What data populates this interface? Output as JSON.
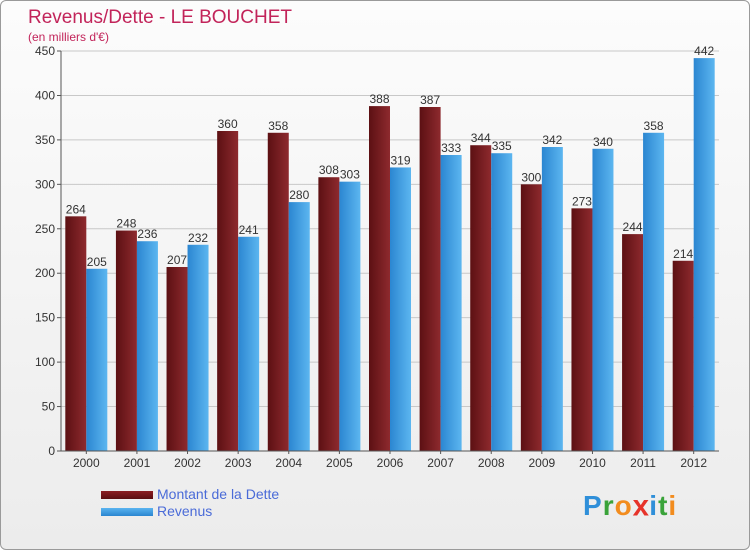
{
  "chart_data": {
    "type": "bar",
    "title": "Revenus/Dette - LE BOUCHET",
    "subtitle": "(en milliers d'€)",
    "categories": [
      "2000",
      "2001",
      "2002",
      "2003",
      "2004",
      "2005",
      "2006",
      "2007",
      "2008",
      "2009",
      "2010",
      "2011",
      "2012"
    ],
    "series": [
      {
        "name": "Montant de la Dette",
        "color": "#7a1a1e",
        "values": [
          264,
          248,
          207,
          360,
          358,
          308,
          388,
          387,
          344,
          300,
          273,
          244,
          214
        ]
      },
      {
        "name": "Revenus",
        "color": "#3d9ce6",
        "values": [
          205,
          236,
          232,
          241,
          280,
          303,
          319,
          333,
          335,
          342,
          340,
          358,
          442
        ]
      }
    ],
    "ylim": [
      0,
      450
    ],
    "yticks": [
      0,
      50,
      100,
      150,
      200,
      250,
      300,
      350,
      400,
      450
    ],
    "grid": true,
    "legend_position": "bottom-left",
    "data_labels": true
  },
  "logo": {
    "text": "Proxiti",
    "letters": [
      {
        "ch": "P",
        "color": "#2f8fd9"
      },
      {
        "ch": "r",
        "color": "#3aa33a"
      },
      {
        "ch": "o",
        "color": "#f28c1e"
      },
      {
        "ch": "x",
        "color": "#e6332a"
      },
      {
        "ch": "i",
        "color": "#2f8fd9"
      },
      {
        "ch": "t",
        "color": "#3aa33a"
      },
      {
        "ch": "i",
        "color": "#f28c1e"
      }
    ]
  }
}
